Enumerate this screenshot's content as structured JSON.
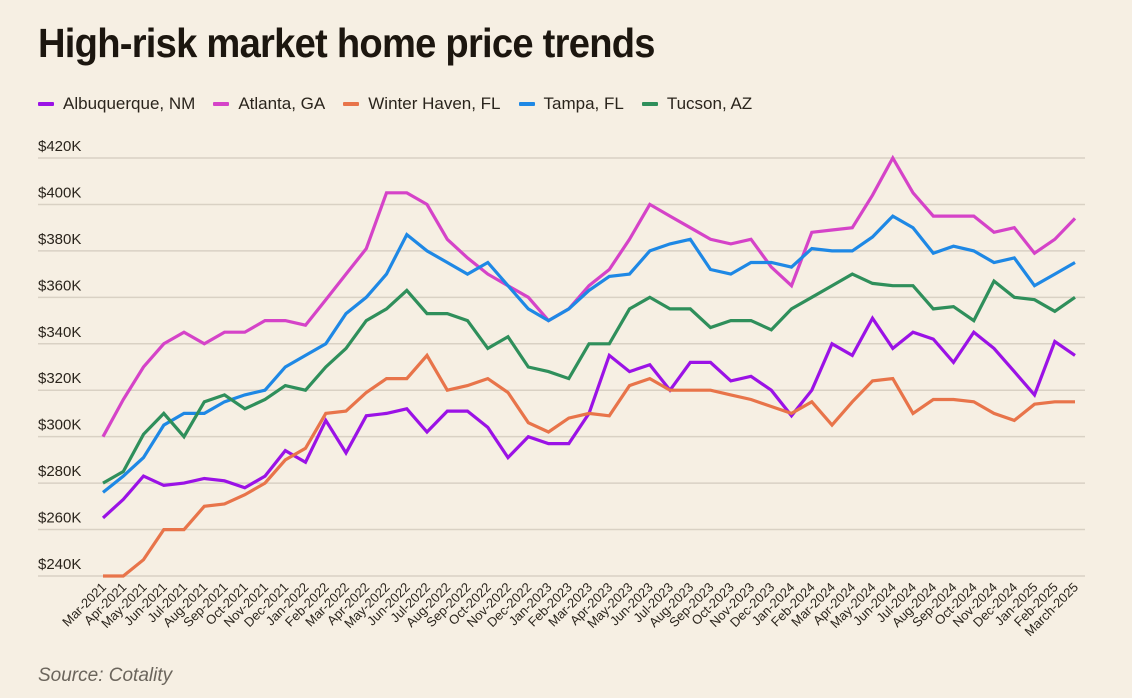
{
  "chart_data": {
    "type": "line",
    "title": "High-risk market home price trends",
    "xlabel": "",
    "ylabel": "",
    "source": "Source: Cotality",
    "ylim": [
      240000,
      420000
    ],
    "grid": true,
    "legend_position": "top-left",
    "yticks": [
      {
        "value": 420000,
        "label": "$420K"
      },
      {
        "value": 400000,
        "label": "$400K"
      },
      {
        "value": 380000,
        "label": "$380K"
      },
      {
        "value": 360000,
        "label": "$360K"
      },
      {
        "value": 340000,
        "label": "$340K"
      },
      {
        "value": 320000,
        "label": "$320K"
      },
      {
        "value": 300000,
        "label": "$300K"
      },
      {
        "value": 280000,
        "label": "$280K"
      },
      {
        "value": 260000,
        "label": "$260K"
      },
      {
        "value": 240000,
        "label": "$240K"
      }
    ],
    "x": [
      "Mar-2021",
      "Apr-2021",
      "May-2021",
      "Jun-2021",
      "Jul-2021",
      "Aug-2021",
      "Sep-2021",
      "Oct-2021",
      "Nov-2021",
      "Dec-2021",
      "Jan-2022",
      "Feb-2022",
      "Mar-2022",
      "Apr-2022",
      "May-2022",
      "Jun-2022",
      "Jul-2022",
      "Aug-2022",
      "Sep-2022",
      "Oct-2022",
      "Nov-2022",
      "Dec-2022",
      "Jan-2023",
      "Feb-2023",
      "Mar-2023",
      "Apr-2023",
      "May-2023",
      "Jun-2023",
      "Jul-2023",
      "Aug-2023",
      "Sep-2023",
      "Oct-2023",
      "Nov-2023",
      "Dec-2023",
      "Jan-2024",
      "Feb-2024",
      "Mar-2024",
      "Apr-2024",
      "May-2024",
      "Jun-2024",
      "Jul-2024",
      "Aug-2024",
      "Sep-2024",
      "Oct-2024",
      "Nov-2024",
      "Dec-2024",
      "Jan-2025",
      "Feb-2025",
      "March-2025"
    ],
    "series": [
      {
        "name": "Albuquerque, NM",
        "color": "#9b12e6",
        "values": [
          265000,
          273000,
          283000,
          279000,
          280000,
          282000,
          281000,
          278000,
          283000,
          294000,
          289000,
          307000,
          293000,
          309000,
          310000,
          312000,
          302000,
          311000,
          311000,
          304000,
          291000,
          300000,
          297000,
          297000,
          310000,
          335000,
          328000,
          331000,
          320000,
          332000,
          332000,
          324000,
          326000,
          320000,
          309000,
          320000,
          340000,
          335000,
          351000,
          338000,
          345000,
          342000,
          332000,
          345000,
          338000,
          328000,
          318000,
          341000,
          335000
        ]
      },
      {
        "name": "Atlanta, GA",
        "color": "#d543c8",
        "values": [
          300000,
          316000,
          330000,
          340000,
          345000,
          340000,
          345000,
          345000,
          350000,
          350000,
          348000,
          359000,
          370000,
          381000,
          405000,
          405000,
          400000,
          385000,
          377000,
          370000,
          365000,
          360000,
          350000,
          355000,
          365000,
          372000,
          385000,
          400000,
          395000,
          390000,
          385000,
          383000,
          385000,
          373000,
          365000,
          388000,
          389000,
          390000,
          404000,
          420000,
          405000,
          395000,
          395000,
          395000,
          388000,
          390000,
          379000,
          385000,
          394000
        ]
      },
      {
        "name": "Winter Haven, FL",
        "color": "#e8744a",
        "values": [
          240000,
          240000,
          247000,
          260000,
          260000,
          270000,
          271000,
          275000,
          280000,
          290000,
          295000,
          310000,
          311000,
          319000,
          325000,
          325000,
          335000,
          320000,
          322000,
          325000,
          319000,
          306000,
          302000,
          308000,
          310000,
          309000,
          322000,
          325000,
          320000,
          320000,
          320000,
          318000,
          316000,
          313000,
          310000,
          315000,
          305000,
          315000,
          324000,
          325000,
          310000,
          316000,
          316000,
          315000,
          310000,
          307000,
          314000,
          315000,
          315000
        ]
      },
      {
        "name": "Tampa, FL",
        "color": "#1e88e5",
        "values": [
          276000,
          283000,
          291000,
          305000,
          310000,
          310000,
          315000,
          318000,
          320000,
          330000,
          335000,
          340000,
          353000,
          360000,
          370000,
          387000,
          380000,
          375000,
          370000,
          375000,
          365000,
          355000,
          350000,
          355000,
          363000,
          369000,
          370000,
          380000,
          383000,
          385000,
          372000,
          370000,
          375000,
          375000,
          373000,
          381000,
          380000,
          380000,
          386000,
          395000,
          390000,
          379000,
          382000,
          380000,
          375000,
          377000,
          365000,
          370000,
          375000
        ]
      },
      {
        "name": "Tucson, AZ",
        "color": "#2f8f5b",
        "values": [
          280000,
          285000,
          301000,
          310000,
          300000,
          315000,
          318000,
          312000,
          316000,
          322000,
          320000,
          330000,
          338000,
          350000,
          355000,
          363000,
          353000,
          353000,
          350000,
          338000,
          343000,
          330000,
          328000,
          325000,
          340000,
          340000,
          355000,
          360000,
          355000,
          355000,
          347000,
          350000,
          350000,
          346000,
          355000,
          360000,
          365000,
          370000,
          366000,
          365000,
          365000,
          355000,
          356000,
          350000,
          367000,
          360000,
          359000,
          354000,
          360000
        ]
      }
    ]
  }
}
